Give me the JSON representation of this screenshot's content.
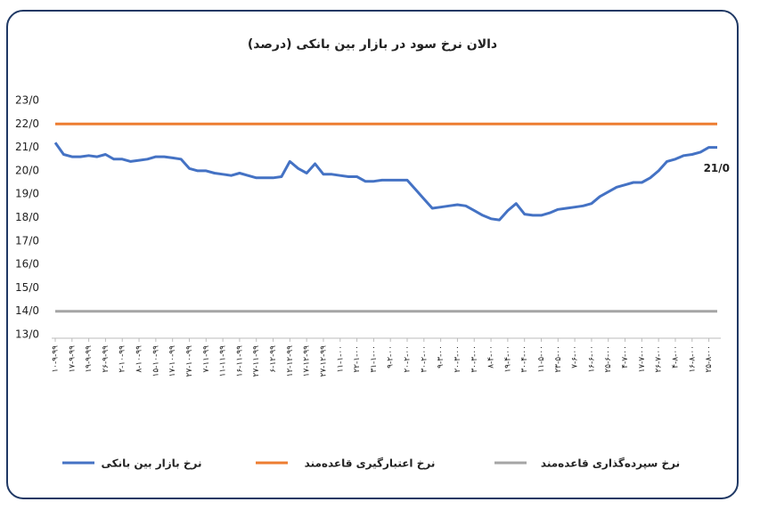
{
  "chart_data": {
    "type": "line",
    "title": "دالان نرخ سود در بازار بین بانکی (درصد)",
    "categories": [
      "۱۰-۹-۹۹",
      null,
      "۱۷-۹-۹۹",
      null,
      "۱۹-۹-۹۹",
      null,
      "۲۶-۹-۹۹",
      null,
      "۲-۱۰-۹۹",
      null,
      "۸-۱۰-۹۹",
      null,
      "۱۵-۱۰-۹۹",
      null,
      "۱۷-۱۰-۹۹",
      null,
      "۲۷-۱۰-۹۹",
      null,
      "۷-۱۱-۹۹",
      null,
      "۱۱-۱۱-۹۹",
      null,
      "۱۶-۱۱-۹۹",
      null,
      "۲۷-۱۱-۹۹",
      null,
      "۶-۱۲-۹۹",
      null,
      "۱۲-۱۲-۹۹",
      null,
      "۱۷-۱۲-۹۹",
      null,
      "۲۷-۱۲-۹۹",
      null,
      "۱۱-۱-۰۰",
      null,
      "۲۲-۱-۰۰",
      null,
      "۳۱-۱-۰۰",
      null,
      "۹-۲-۰۰",
      null,
      "۲۰-۲-۰۰",
      null,
      "۳۰-۲-۰۰",
      null,
      "۹-۳-۰۰",
      null,
      "۲۰-۳-۰۰",
      null,
      "۳۰-۳-۰۰",
      null,
      "۸-۴-۰۰",
      null,
      "۱۹-۴-۰۰",
      null,
      "۳۰-۴-۰۰",
      null,
      "۱۱-۵-۰۰",
      null,
      "۲۳-۵-۰۰",
      null,
      "۷-۶-۰۰",
      null,
      "۱۶-۶-۰۰",
      null,
      "۲۵-۶-۰۰",
      null,
      "۴-۷-۰۰",
      null,
      "۱۷-۷-۰۰",
      null,
      "۲۶-۷-۰۰",
      null,
      "۴-۸-۰۰",
      null,
      "۱۶-۸-۰۰",
      null,
      "۲۵-۸-۰۰",
      null
    ],
    "series": [
      {
        "name": "نرخ بازار بین بانکی",
        "color": "#4472c4",
        "values": [
          21.2,
          20.7,
          20.6,
          20.6,
          20.65,
          20.6,
          20.7,
          20.5,
          20.5,
          20.4,
          20.45,
          20.5,
          20.6,
          20.6,
          20.55,
          20.5,
          20.1,
          20.0,
          20.0,
          19.9,
          19.85,
          19.8,
          19.9,
          19.8,
          19.7,
          19.7,
          19.7,
          19.75,
          20.4,
          20.1,
          19.9,
          20.3,
          19.85,
          19.85,
          19.8,
          19.75,
          19.75,
          19.55,
          19.55,
          19.6,
          19.6,
          19.6,
          19.6,
          19.2,
          18.8,
          18.4,
          18.45,
          18.5,
          18.55,
          18.5,
          18.3,
          18.1,
          17.95,
          17.9,
          18.3,
          18.6,
          18.15,
          18.1,
          18.1,
          18.2,
          18.35,
          18.4,
          18.45,
          18.5,
          18.6,
          18.9,
          19.1,
          19.3,
          19.4,
          19.5,
          19.5,
          19.7,
          20.0,
          20.4,
          20.5,
          20.65,
          20.7,
          20.8,
          21.0,
          21.0
        ],
        "value_labels": [
          null,
          null,
          null,
          null,
          null,
          null,
          null,
          null,
          null,
          null,
          null,
          null,
          null,
          null,
          null,
          null,
          null,
          null,
          null,
          null,
          null,
          null,
          null,
          null,
          null,
          null,
          null,
          null,
          null,
          null,
          null,
          null,
          null,
          null,
          null,
          null,
          null,
          null,
          null,
          null,
          null,
          null,
          null,
          null,
          null,
          null,
          null,
          null,
          null,
          null,
          null,
          null,
          null,
          null,
          null,
          null,
          null,
          null,
          null,
          null,
          null,
          null,
          null,
          null,
          null,
          null,
          null,
          null,
          null,
          null,
          null,
          null,
          null,
          null,
          null,
          null,
          null,
          null,
          null,
          "21/0"
        ]
      },
      {
        "name": "نرخ اعتبارگیری قاعده‌مند",
        "color": "#ed7d31",
        "values": [
          22,
          22,
          22,
          22,
          22,
          22,
          22,
          22,
          22,
          22,
          22,
          22,
          22,
          22,
          22,
          22,
          22,
          22,
          22,
          22,
          22,
          22,
          22,
          22,
          22,
          22,
          22,
          22,
          22,
          22,
          22,
          22,
          22,
          22,
          22,
          22,
          22,
          22,
          22,
          22,
          22,
          22,
          22,
          22,
          22,
          22,
          22,
          22,
          22,
          22,
          22,
          22,
          22,
          22,
          22,
          22,
          22,
          22,
          22,
          22,
          22,
          22,
          22,
          22,
          22,
          22,
          22,
          22,
          22,
          22,
          22,
          22,
          22,
          22,
          22,
          22,
          22,
          22,
          22,
          22
        ]
      },
      {
        "name": "نرخ سپرده‌گذاری قاعده‌مند",
        "color": "#a5a5a5",
        "values": [
          14,
          14,
          14,
          14,
          14,
          14,
          14,
          14,
          14,
          14,
          14,
          14,
          14,
          14,
          14,
          14,
          14,
          14,
          14,
          14,
          14,
          14,
          14,
          14,
          14,
          14,
          14,
          14,
          14,
          14,
          14,
          14,
          14,
          14,
          14,
          14,
          14,
          14,
          14,
          14,
          14,
          14,
          14,
          14,
          14,
          14,
          14,
          14,
          14,
          14,
          14,
          14,
          14,
          14,
          14,
          14,
          14,
          14,
          14,
          14,
          14,
          14,
          14,
          14,
          14,
          14,
          14,
          14,
          14,
          14,
          14,
          14,
          14,
          14,
          14,
          14,
          14,
          14,
          14,
          14
        ]
      }
    ],
    "ylim": [
      13,
      23
    ],
    "yticks": [
      {
        "value": 13,
        "label": "13/0"
      },
      {
        "value": 14,
        "label": "14/0"
      },
      {
        "value": 15,
        "label": "15/0"
      },
      {
        "value": 16,
        "label": "16/0"
      },
      {
        "value": 17,
        "label": "17/0"
      },
      {
        "value": 18,
        "label": "18/0"
      },
      {
        "value": 19,
        "label": "19/0"
      },
      {
        "value": 20,
        "label": "20/0"
      },
      {
        "value": 21,
        "label": "21/0"
      },
      {
        "value": 22,
        "label": "22/0"
      },
      {
        "value": 23,
        "label": "23/0"
      }
    ],
    "grid": false,
    "legend": "bottom"
  }
}
